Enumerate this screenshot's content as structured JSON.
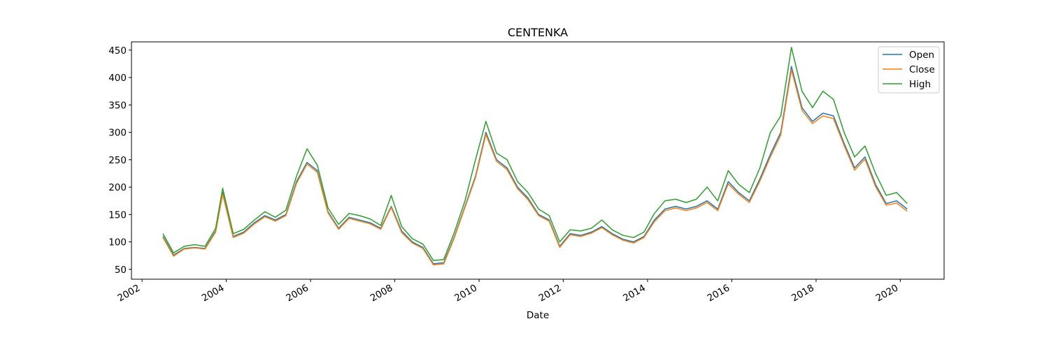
{
  "chart_data": {
    "type": "line",
    "title": "CENTENKA",
    "xlabel": "Date",
    "ylabel": "",
    "xlim": [
      "2001-10-01",
      "2021-01-15"
    ],
    "ylim": [
      32,
      465
    ],
    "x_ticks": [
      "2002",
      "2004",
      "2006",
      "2008",
      "2010",
      "2012",
      "2014",
      "2016",
      "2018",
      "2020"
    ],
    "y_ticks": [
      50,
      100,
      150,
      200,
      250,
      300,
      350,
      400,
      450
    ],
    "grid": false,
    "legend_position": "top-right",
    "x": [
      "2002-07",
      "2002-10",
      "2003-01",
      "2003-04",
      "2003-07",
      "2003-10",
      "2003-12",
      "2004-03",
      "2004-06",
      "2004-09",
      "2004-12",
      "2005-03",
      "2005-06",
      "2005-09",
      "2005-12",
      "2006-03",
      "2006-06",
      "2006-09",
      "2006-12",
      "2007-03",
      "2007-06",
      "2007-09",
      "2007-12",
      "2008-03",
      "2008-06",
      "2008-09",
      "2008-12",
      "2009-03",
      "2009-06",
      "2009-09",
      "2009-12",
      "2010-03",
      "2010-06",
      "2010-09",
      "2010-12",
      "2011-03",
      "2011-06",
      "2011-09",
      "2011-12",
      "2012-03",
      "2012-06",
      "2012-09",
      "2012-12",
      "2013-03",
      "2013-06",
      "2013-09",
      "2013-12",
      "2014-03",
      "2014-06",
      "2014-09",
      "2014-12",
      "2015-03",
      "2015-06",
      "2015-09",
      "2015-12",
      "2016-03",
      "2016-06",
      "2016-09",
      "2016-12",
      "2017-03",
      "2017-06",
      "2017-09",
      "2017-12",
      "2018-03",
      "2018-06",
      "2018-09",
      "2018-12",
      "2019-03",
      "2019-06",
      "2019-09",
      "2019-12",
      "2020-03"
    ],
    "series": [
      {
        "name": "Open",
        "color": "#1f77b4",
        "values": [
          110,
          76,
          88,
          90,
          88,
          120,
          190,
          110,
          118,
          135,
          148,
          140,
          150,
          210,
          245,
          230,
          155,
          125,
          145,
          140,
          135,
          125,
          165,
          120,
          100,
          90,
          60,
          62,
          110,
          165,
          220,
          300,
          250,
          235,
          200,
          180,
          150,
          140,
          92,
          115,
          112,
          118,
          128,
          115,
          105,
          100,
          110,
          140,
          160,
          165,
          160,
          165,
          175,
          160,
          210,
          190,
          175,
          215,
          260,
          300,
          420,
          345,
          320,
          335,
          330,
          280,
          235,
          255,
          205,
          170,
          175,
          160
        ]
      },
      {
        "name": "Close",
        "color": "#ff7f0e",
        "values": [
          108,
          74,
          87,
          89,
          87,
          118,
          187,
          108,
          116,
          133,
          146,
          138,
          148,
          207,
          242,
          227,
          153,
          123,
          143,
          138,
          133,
          123,
          163,
          117,
          98,
          88,
          58,
          60,
          108,
          163,
          217,
          296,
          247,
          232,
          197,
          177,
          148,
          138,
          90,
          113,
          110,
          116,
          126,
          113,
          103,
          98,
          108,
          137,
          157,
          162,
          157,
          162,
          172,
          157,
          206,
          187,
          172,
          211,
          255,
          295,
          414,
          340,
          316,
          330,
          325,
          276,
          231,
          251,
          201,
          167,
          171,
          156
        ]
      },
      {
        "name": "High",
        "color": "#2ca02c",
        "values": [
          115,
          80,
          92,
          95,
          92,
          125,
          198,
          115,
          123,
          140,
          155,
          145,
          158,
          220,
          270,
          240,
          162,
          132,
          152,
          148,
          142,
          130,
          185,
          128,
          106,
          96,
          66,
          68,
          118,
          175,
          250,
          320,
          262,
          250,
          210,
          190,
          160,
          148,
          100,
          122,
          120,
          125,
          140,
          122,
          112,
          108,
          118,
          152,
          175,
          178,
          172,
          178,
          200,
          175,
          230,
          205,
          190,
          235,
          300,
          330,
          455,
          375,
          345,
          375,
          360,
          300,
          255,
          275,
          225,
          185,
          190,
          170
        ]
      }
    ]
  }
}
